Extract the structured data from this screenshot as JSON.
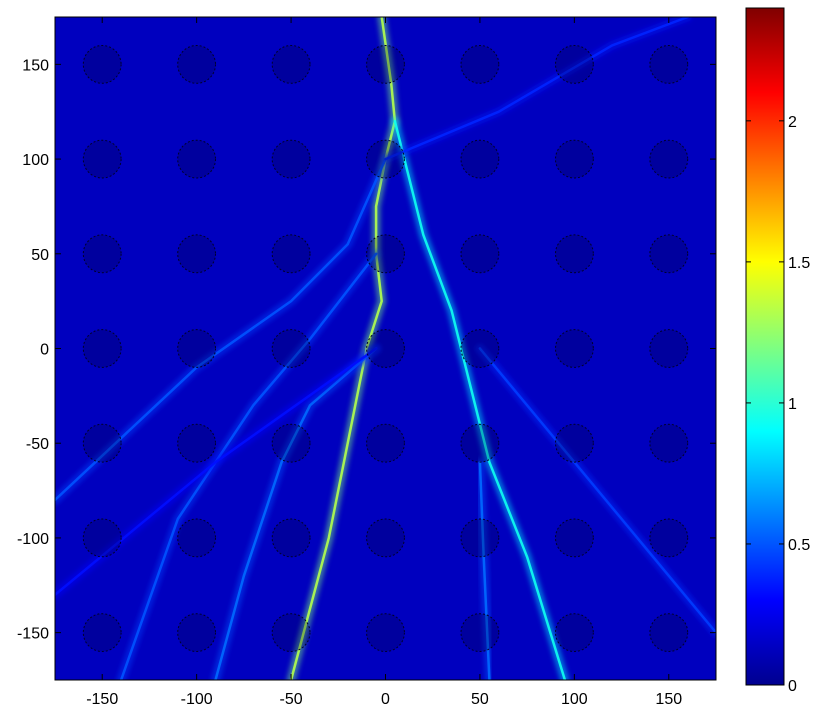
{
  "chart_data": {
    "type": "heatmap",
    "title": "",
    "xlabel": "",
    "ylabel": "",
    "xlim": [
      -175,
      175
    ],
    "ylim": [
      -175,
      175
    ],
    "x_ticks": [
      "-150",
      "-100",
      "-50",
      "0",
      "50",
      "100",
      "150"
    ],
    "y_ticks": [
      "150",
      "100",
      "50",
      "0",
      "-50",
      "-100",
      "-150"
    ],
    "colormap": "jet",
    "colorbar": {
      "range": [
        0,
        2.4
      ],
      "ticks": [
        "0",
        "0.5",
        "1",
        "1.5",
        "2"
      ],
      "placement": "right"
    },
    "grid": false,
    "background_level": 0.15,
    "scatterer_lattice": {
      "x_centers": [
        -150,
        -100,
        -50,
        0,
        50,
        100,
        150
      ],
      "y_centers": [
        -150,
        -100,
        -50,
        0,
        50,
        100,
        150
      ],
      "radius": 10
    },
    "caustic_branches": [
      {
        "points": [
          [
            -2,
            175
          ],
          [
            3,
            140
          ],
          [
            5,
            120
          ],
          [
            0,
            100
          ],
          [
            -5,
            75
          ],
          [
            -5,
            50
          ],
          [
            -2,
            25
          ],
          [
            -10,
            0
          ],
          [
            -20,
            -50
          ],
          [
            -30,
            -100
          ],
          [
            -50,
            -175
          ]
        ],
        "intensity": 1.2
      },
      {
        "points": [
          [
            5,
            120
          ],
          [
            20,
            60
          ],
          [
            35,
            20
          ],
          [
            45,
            -20
          ],
          [
            55,
            -60
          ],
          [
            75,
            -110
          ],
          [
            95,
            -175
          ]
        ],
        "intensity": 0.85
      },
      {
        "points": [
          [
            0,
            100
          ],
          [
            -20,
            55
          ],
          [
            -50,
            25
          ],
          [
            -100,
            -10
          ],
          [
            -175,
            -80
          ]
        ],
        "intensity": 0.45
      },
      {
        "points": [
          [
            -5,
            50
          ],
          [
            -40,
            5
          ],
          [
            -70,
            -30
          ],
          [
            -110,
            -90
          ],
          [
            -140,
            -175
          ]
        ],
        "intensity": 0.45
      },
      {
        "points": [
          [
            -5,
            0
          ],
          [
            -40,
            -30
          ],
          [
            -55,
            -60
          ],
          [
            -75,
            -120
          ],
          [
            -90,
            -175
          ]
        ],
        "intensity": 0.5
      },
      {
        "points": [
          [
            50,
            -60
          ],
          [
            52,
            -110
          ],
          [
            55,
            -175
          ]
        ],
        "intensity": 0.5
      },
      {
        "points": [
          [
            50,
            0
          ],
          [
            100,
            -60
          ],
          [
            150,
            -120
          ],
          [
            175,
            -150
          ]
        ],
        "intensity": 0.4
      },
      {
        "points": [
          [
            0,
            100
          ],
          [
            60,
            125
          ],
          [
            120,
            160
          ],
          [
            160,
            175
          ]
        ],
        "intensity": 0.35
      },
      {
        "points": [
          [
            -5,
            0
          ],
          [
            -90,
            -60
          ],
          [
            -175,
            -130
          ]
        ],
        "intensity": 0.3
      }
    ]
  }
}
